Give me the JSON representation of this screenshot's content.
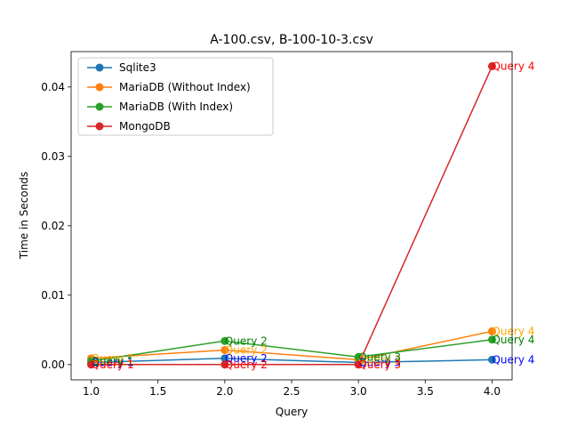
{
  "chart_data": {
    "type": "line",
    "title": "A-100.csv, B-100-10-3.csv",
    "xlabel": "Query",
    "ylabel": "Time in Seconds",
    "xlim": [
      0.85,
      4.15
    ],
    "ylim": [
      -0.0022,
      0.0451
    ],
    "xticks": [
      "1.0",
      "1.5",
      "2.0",
      "2.5",
      "3.0",
      "3.5",
      "4.0"
    ],
    "yticks": [
      "0.00",
      "0.01",
      "0.02",
      "0.03",
      "0.04"
    ],
    "x": [
      1,
      2,
      3,
      4
    ],
    "legend_position": "upper-left",
    "series": [
      {
        "name": "Sqlite3",
        "color": "#1f77b4",
        "values": [
          0.0003,
          0.0009,
          0.0003,
          0.0007
        ],
        "annot_color": "#0000ff",
        "annot_values": [
          0.0003,
          0.0009,
          0.0003,
          0.0007
        ]
      },
      {
        "name": "MariaDB (Without Index)",
        "color": "#ff7f0e",
        "values": [
          0.0009,
          0.0021,
          0.0007,
          0.0048
        ],
        "annot_color": "#ffa500",
        "annot_values": [
          0.0009,
          0.0021,
          0.0007,
          0.0048
        ]
      },
      {
        "name": "MariaDB (With Index)",
        "color": "#2ca02c",
        "values": [
          0.0005,
          0.0034,
          0.0011,
          0.0036
        ],
        "annot_color": "#008000",
        "annot_values": [
          0.0005,
          0.0034,
          0.0011,
          0.0036
        ]
      },
      {
        "name": "MongoDB",
        "color": "#d62728",
        "values": [
          0.0,
          0.0,
          0.0,
          0.043
        ],
        "annot_color": "#ff0000",
        "annot_values": [
          0.0,
          0.0,
          0.0,
          0.043
        ]
      }
    ],
    "annotations": [
      "Query 1",
      "Query 2",
      "Query 3",
      "Query 4"
    ]
  }
}
